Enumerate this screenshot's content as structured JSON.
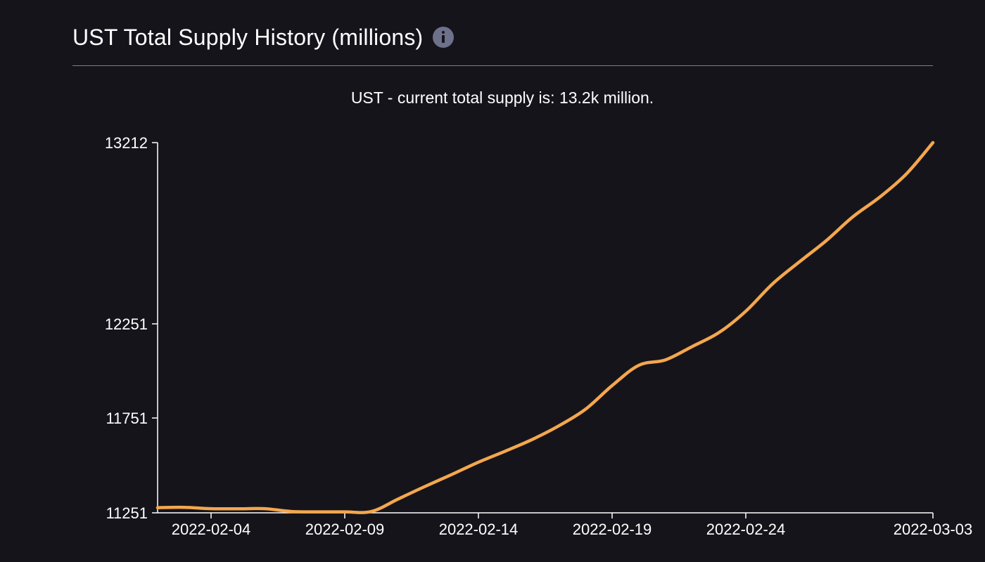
{
  "header": {
    "title": "UST Total Supply History (millions)",
    "info_icon": "info-icon"
  },
  "colors": {
    "background": "#16141b",
    "line": "#f4a74d",
    "axis": "#ffffff",
    "divider": "#7c8096",
    "info_icon": "#6d7189"
  },
  "chart_data": {
    "type": "line",
    "title": "UST - current total supply is: 13.2k million.",
    "xlabel": "",
    "ylabel": "",
    "x_tick_labels": [
      "2022-02-04",
      "2022-02-09",
      "2022-02-14",
      "2022-02-19",
      "2022-02-24",
      "2022-03-03"
    ],
    "y_tick_labels": [
      "13212",
      "12251",
      "11751",
      "11251"
    ],
    "y_ticks": [
      13212,
      12251,
      11751,
      11251
    ],
    "ylim": [
      11251,
      13212
    ],
    "xlim": [
      "2022-02-02",
      "2022-03-03"
    ],
    "grid": false,
    "x": [
      "2022-02-02",
      "2022-02-03",
      "2022-02-04",
      "2022-02-05",
      "2022-02-06",
      "2022-02-07",
      "2022-02-08",
      "2022-02-09",
      "2022-02-10",
      "2022-02-11",
      "2022-02-12",
      "2022-02-13",
      "2022-02-14",
      "2022-02-15",
      "2022-02-16",
      "2022-02-17",
      "2022-02-18",
      "2022-02-19",
      "2022-02-20",
      "2022-02-21",
      "2022-02-22",
      "2022-02-23",
      "2022-02-24",
      "2022-02-25",
      "2022-02-26",
      "2022-02-27",
      "2022-02-28",
      "2022-03-01",
      "2022-03-02",
      "2022-03-03"
    ],
    "series": [
      {
        "values": [
          11278,
          11280,
          11273,
          11272,
          11273,
          11258,
          11256,
          11256,
          11258,
          11324,
          11390,
          11453,
          11518,
          11576,
          11637,
          11709,
          11797,
          11923,
          12031,
          12060,
          12131,
          12205,
          12318,
          12463,
          12579,
          12691,
          12818,
          12922,
          13045,
          13212
        ]
      }
    ]
  }
}
